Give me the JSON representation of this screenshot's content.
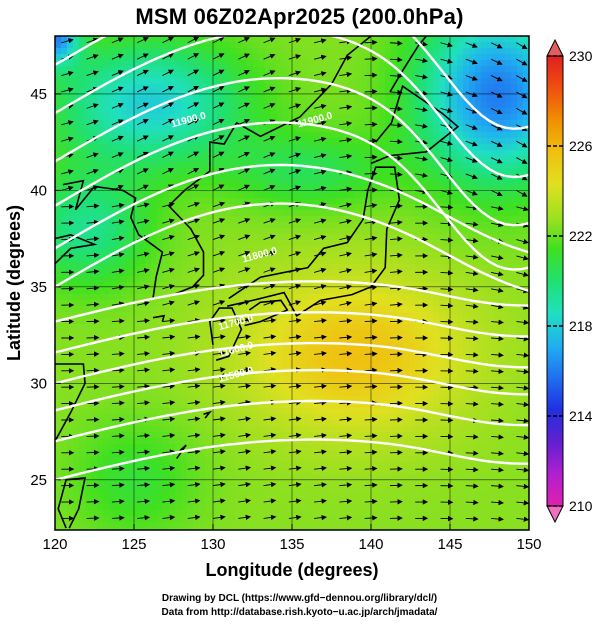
{
  "title": "MSM 06Z02Apr2025 (200.0hPa)",
  "map": {
    "xlabel": "Longitude (degrees)",
    "ylabel": "Latitude  (degrees)",
    "xlim": [
      120,
      150
    ],
    "ylim": [
      22.4,
      48
    ],
    "xticks": [
      "120",
      "125",
      "130",
      "135",
      "140",
      "145",
      "150"
    ],
    "yticks": [
      "25",
      "30",
      "35",
      "40",
      "45"
    ],
    "grid": "5 degree graticule",
    "contour_labels": [
      "11500.0",
      "11600.0",
      "11700.0",
      "11800.0",
      "11900.0",
      "11900.0"
    ]
  },
  "colorbar": {
    "ticks": [
      "210",
      "214",
      "218",
      "222",
      "226",
      "230"
    ],
    "range": [
      210,
      230
    ],
    "colors": [
      "#e020b0",
      "#b020d0",
      "#6020d0",
      "#2030e0",
      "#2070f0",
      "#20b0f0",
      "#20e0c0",
      "#20e070",
      "#40e020",
      "#a0e020",
      "#e0e020",
      "#f0c010",
      "#f09000",
      "#f05010",
      "#e02020"
    ]
  },
  "credit": {
    "line1": "Drawing by DCL (https://www.gfd−dennou.org/library/dcl/)",
    "line2": "Data from http://database.rish.kyoto−u.ac.jp/arch/jmadata/"
  }
}
